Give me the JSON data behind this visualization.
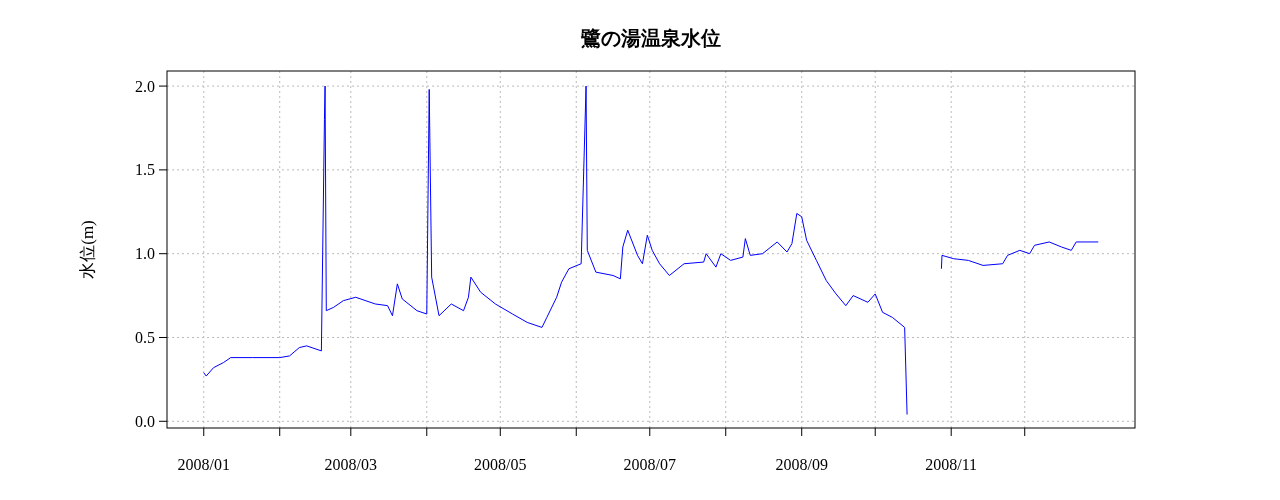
{
  "chart_data": {
    "type": "line",
    "title": "鷺の湯温泉水位",
    "ylabel": "水位(m)",
    "x": [
      "2008-01-01",
      "2008-01-02",
      "2008-01-05",
      "2008-01-09",
      "2008-01-12",
      "2008-01-21",
      "2008-02-01",
      "2008-02-05",
      "2008-02-09",
      "2008-02-12",
      "2008-02-18",
      "2008-02-19T06:00",
      "2008-02-19T12:00",
      "2008-02-20",
      "2008-02-23",
      "2008-02-27",
      "2008-03-03",
      "2008-03-11",
      "2008-03-16",
      "2008-03-18",
      "2008-03-20",
      "2008-03-22",
      "2008-03-28",
      "2008-04-01",
      "2008-04-02",
      "2008-04-03",
      "2008-04-06",
      "2008-04-11",
      "2008-04-16",
      "2008-04-18",
      "2008-04-19",
      "2008-04-23",
      "2008-04-29",
      "2008-05-06",
      "2008-05-12",
      "2008-05-18",
      "2008-05-20",
      "2008-05-24",
      "2008-05-26",
      "2008-05-29",
      "2008-06-03",
      "2008-06-05",
      "2008-06-05T12:00",
      "2008-06-09",
      "2008-06-16",
      "2008-06-19",
      "2008-06-20",
      "2008-06-22",
      "2008-06-26",
      "2008-06-28",
      "2008-06-30",
      "2008-07-02",
      "2008-07-05",
      "2008-07-09",
      "2008-07-15",
      "2008-07-23",
      "2008-07-24",
      "2008-07-28",
      "2008-07-30",
      "2008-08-03",
      "2008-08-08",
      "2008-08-09",
      "2008-08-11",
      "2008-08-16",
      "2008-08-22",
      "2008-08-26",
      "2008-08-28",
      "2008-08-30",
      "2008-09-01",
      "2008-09-03",
      "2008-09-07",
      "2008-09-11",
      "2008-09-15",
      "2008-09-19",
      "2008-09-22",
      "2008-09-28",
      "2008-10-01",
      "2008-10-04",
      "2008-10-08",
      "2008-10-13",
      "2008-10-14",
      "2008-10-20",
      "2008-10-28",
      "2008-10-28T06:00",
      "2008-11-02",
      "2008-11-08",
      "2008-11-14",
      "2008-11-22",
      "2008-11-24",
      "2008-11-29",
      "2008-12-03",
      "2008-12-05",
      "2008-12-11",
      "2008-12-16",
      "2008-12-20",
      "2008-12-22",
      "2008-12-31"
    ],
    "series": [
      {
        "color": "#0000ff",
        "values": [
          0.29,
          0.27,
          0.32,
          0.35,
          0.38,
          0.38,
          0.38,
          0.39,
          0.44,
          0.45,
          0.42,
          1.8,
          2.0,
          0.66,
          0.68,
          0.72,
          0.74,
          0.7,
          0.69,
          0.63,
          0.82,
          0.73,
          0.66,
          0.64,
          1.98,
          0.86,
          0.63,
          0.7,
          0.66,
          0.74,
          0.86,
          0.77,
          0.7,
          0.64,
          0.59,
          0.56,
          0.62,
          0.74,
          0.83,
          0.91,
          0.94,
          2.0,
          1.02,
          0.89,
          0.87,
          0.85,
          1.04,
          1.14,
          0.99,
          0.94,
          1.11,
          1.02,
          0.94,
          0.87,
          0.94,
          0.95,
          1.0,
          0.92,
          1.0,
          0.96,
          0.98,
          1.09,
          0.99,
          1.0,
          1.07,
          1.01,
          1.06,
          1.24,
          1.22,
          1.08,
          0.96,
          0.84,
          0.76,
          0.69,
          0.75,
          0.71,
          0.76,
          0.65,
          0.62,
          0.56,
          0.04,
          null,
          0.91,
          0.99,
          0.97,
          0.96,
          0.93,
          0.94,
          0.99,
          1.02,
          1.0,
          1.05,
          1.07,
          1.04,
          1.02,
          1.07,
          1.07
        ]
      }
    ],
    "xlim": [
      "2007-12-17",
      "2009-01-15"
    ],
    "ylim": [
      -0.04,
      2.09
    ],
    "xticks": [
      {
        "value": "2008-01",
        "label": "2008/01"
      },
      {
        "value": "2008-02",
        "label": null
      },
      {
        "value": "2008-03",
        "label": "2008/03"
      },
      {
        "value": "2008-04",
        "label": null
      },
      {
        "value": "2008-05",
        "label": "2008/05"
      },
      {
        "value": "2008-06",
        "label": null
      },
      {
        "value": "2008-07",
        "label": "2008/07"
      },
      {
        "value": "2008-08",
        "label": null
      },
      {
        "value": "2008-09",
        "label": "2008/09"
      },
      {
        "value": "2008-10",
        "label": null
      },
      {
        "value": "2008-11",
        "label": "2008/11"
      },
      {
        "value": "2008-12",
        "label": null
      }
    ],
    "yticks": [
      {
        "value": 0,
        "label": "0.0"
      },
      {
        "value": 0.5,
        "label": "0.5"
      },
      {
        "value": 1,
        "label": "1.0"
      },
      {
        "value": 1.5,
        "label": "1.5"
      },
      {
        "value": 2,
        "label": "2.0"
      }
    ],
    "grid": true,
    "marker": "none",
    "line_style": "solid"
  }
}
